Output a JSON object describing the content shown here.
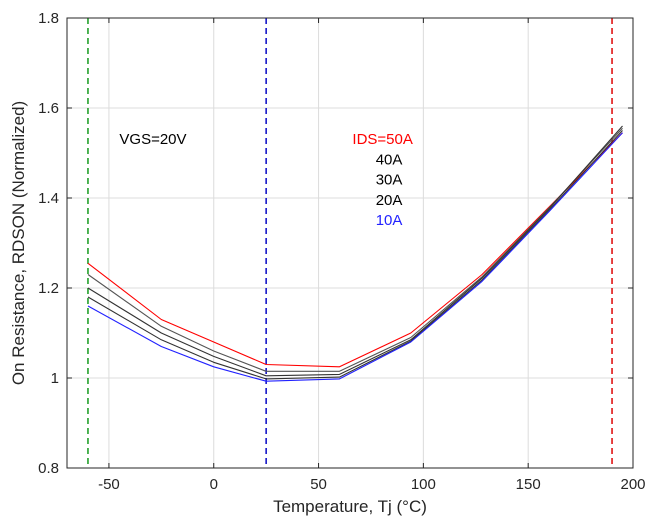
{
  "chart_data": {
    "type": "line",
    "title": "",
    "xlabel": "Temperature, Tj (°C)",
    "ylabel": "On Resistance, RDSON (Normalized)",
    "xlim": [
      -70,
      200
    ],
    "ylim": [
      0.8,
      1.8
    ],
    "xticks": [
      -50,
      0,
      50,
      100,
      150,
      200
    ],
    "yticks": [
      0.8,
      1,
      1.2,
      1.4,
      1.6,
      1.8
    ],
    "xtick_labels": [
      "-50",
      "0",
      "50",
      "100",
      "150",
      "200"
    ],
    "ytick_labels": [
      "0.8",
      "1",
      "1.2",
      "1.4",
      "1.6",
      "1.8"
    ],
    "grid": true,
    "x": [
      -60,
      -25,
      0,
      25,
      60,
      94,
      128,
      160,
      195
    ],
    "series": [
      {
        "name": "IDS=50A",
        "color": "#ff0000",
        "values": [
          1.255,
          1.13,
          1.08,
          1.03,
          1.025,
          1.1,
          1.23,
          1.38,
          1.545
        ]
      },
      {
        "name": "40A",
        "color": "#555555",
        "values": [
          1.23,
          1.115,
          1.06,
          1.015,
          1.015,
          1.09,
          1.225,
          1.378,
          1.555
        ]
      },
      {
        "name": "30A",
        "color": "#333333",
        "values": [
          1.2,
          1.1,
          1.048,
          1.005,
          1.008,
          1.085,
          1.222,
          1.376,
          1.56
        ]
      },
      {
        "name": "20A",
        "color": "#333333",
        "values": [
          1.18,
          1.085,
          1.035,
          0.998,
          1.002,
          1.082,
          1.218,
          1.373,
          1.55
        ]
      },
      {
        "name": "10A",
        "color": "#2222ff",
        "values": [
          1.16,
          1.07,
          1.025,
          0.993,
          0.998,
          1.08,
          1.215,
          1.37,
          1.545
        ]
      }
    ],
    "vlines": [
      {
        "x": -60,
        "color": "#22a02a",
        "style": "dashed"
      },
      {
        "x": 25,
        "color": "#1414c8",
        "style": "dashed"
      },
      {
        "x": 190,
        "color": "#e01414",
        "style": "dashed"
      }
    ],
    "annotations": [
      {
        "text": "VGS=20V",
        "x": -45,
        "y": 1.52,
        "color": "#000000",
        "anchor": "start"
      },
      {
        "text": "IDS=50A",
        "x": 95,
        "y": 1.52,
        "color": "#ff0000",
        "anchor": "end"
      },
      {
        "text": "40A",
        "x": 90,
        "y": 1.475,
        "color": "#000000",
        "anchor": "end"
      },
      {
        "text": "30A",
        "x": 90,
        "y": 1.43,
        "color": "#000000",
        "anchor": "end"
      },
      {
        "text": "20A",
        "x": 90,
        "y": 1.385,
        "color": "#000000",
        "anchor": "end"
      },
      {
        "text": "10A",
        "x": 90,
        "y": 1.34,
        "color": "#2222ff",
        "anchor": "end"
      }
    ]
  }
}
